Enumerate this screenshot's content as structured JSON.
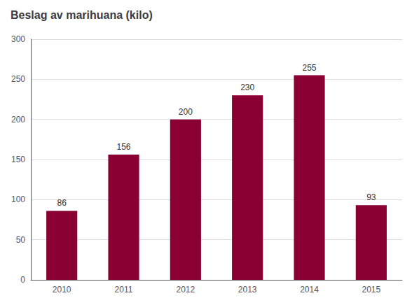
{
  "chart_data": {
    "type": "bar",
    "title": "Beslag av marihuana (kilo)",
    "categories": [
      "2010",
      "2011",
      "2012",
      "2013",
      "2014",
      "2015"
    ],
    "values": [
      86,
      156,
      200,
      230,
      255,
      93
    ],
    "color": "#8B0032",
    "ylim": [
      0,
      300
    ],
    "yticks": [
      0,
      50,
      100,
      150,
      200,
      250,
      300
    ],
    "grid": true,
    "data_labels": true
  }
}
